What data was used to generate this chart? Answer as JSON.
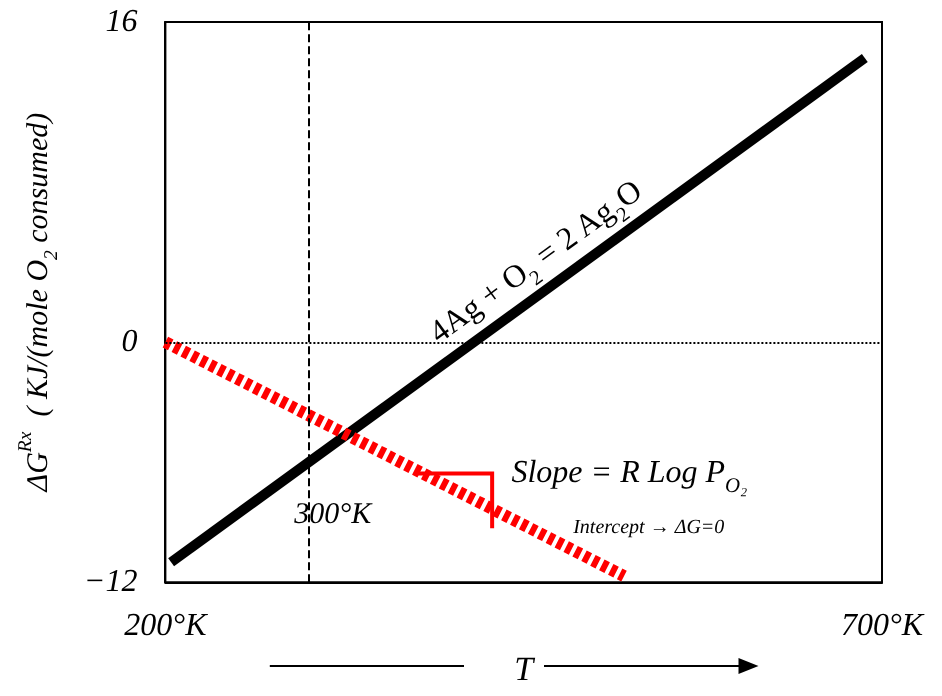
{
  "chart_data": {
    "type": "line",
    "ylabel": "ΔG$^{Rx}$  ( KJ/(mole O$_{2}$ consumed)",
    "xlabel": "T",
    "xlim": [
      200,
      700
    ],
    "xticks": [
      {
        "value": 200,
        "label": "200°K"
      },
      {
        "value": 700,
        "label": "700°K"
      }
    ],
    "ylim": [
      -12,
      16
    ],
    "yticks": [
      -12,
      0,
      16
    ],
    "series": [
      {
        "name": "4Ag + O$_{2}$ = 2 Ag$_{2}$O",
        "color": "#000000",
        "x": [
          204,
          688
        ],
        "values": [
          -11,
          14.2
        ],
        "line_style": "solid"
      },
      {
        "color": "#ff0000",
        "x": [
          200,
          520
        ],
        "values": [
          0,
          -11.7
        ],
        "line_style": "dashed"
      }
    ],
    "ref_lines": [
      {
        "axis": "y",
        "value": 0,
        "line_style": "dotted",
        "color": "#000000"
      },
      {
        "axis": "x",
        "value": 300,
        "label": "300°K",
        "line_style": "dashed",
        "color": "#000000"
      }
    ],
    "annotations": [
      "Slope = R Log P$_{O₂}$",
      "Intercept → ΔG=0"
    ],
    "grid": false,
    "legend": false,
    "marker": "none"
  }
}
